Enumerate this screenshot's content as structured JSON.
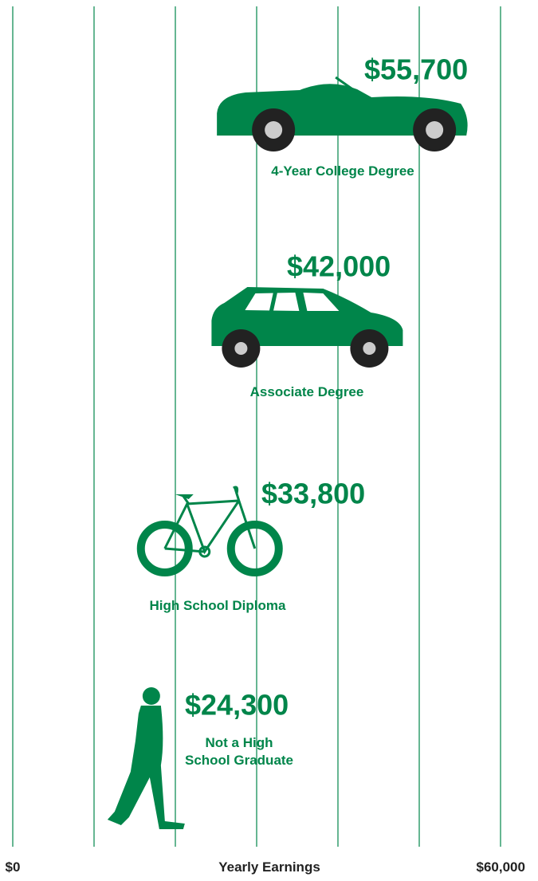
{
  "chart_data": {
    "type": "pictogram",
    "categories": [
      "4-Year College Degree",
      "Associate Degree",
      "High School Diploma",
      "Not a High\nSchool Graduate"
    ],
    "values": [
      55700,
      42000,
      33800,
      24300
    ],
    "value_labels": [
      "$55,700",
      "$42,000",
      "$33,800",
      "$24,300"
    ],
    "color": "#00854a",
    "x_label": "Yearly Earnings",
    "xlim": [
      0,
      60000
    ],
    "xticks": [
      {
        "value": 0,
        "label": "$0"
      },
      {
        "value": 60000,
        "label": "$60,000"
      }
    ],
    "xgrid": [
      0,
      10000,
      20000,
      30000,
      40000,
      50000,
      60000
    ],
    "grid": true
  }
}
